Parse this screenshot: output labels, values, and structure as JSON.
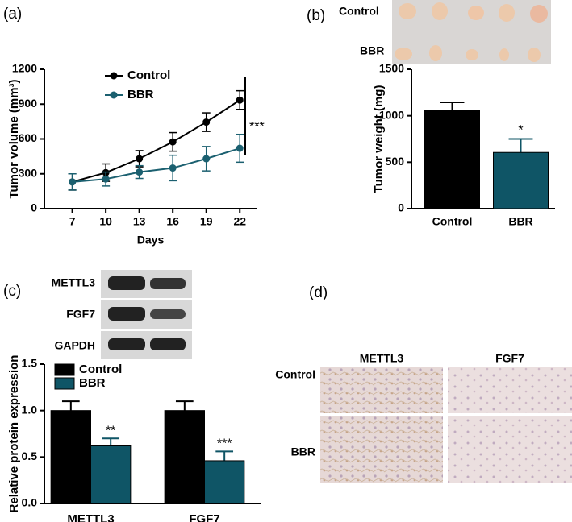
{
  "chart_data": [
    {
      "type": "line",
      "panel_label": "(a)",
      "x": [
        7,
        10,
        13,
        16,
        19,
        22
      ],
      "xticks": [
        7,
        10,
        13,
        16,
        19,
        22
      ],
      "xlim": [
        4.5,
        23.5
      ],
      "ylim": [
        0,
        1200
      ],
      "yticks": [
        0,
        300,
        600,
        900,
        1200
      ],
      "x_label": "Days",
      "y_label": "Tumor volume (mm³)",
      "series": [
        {
          "name": "Control",
          "color": "#000000",
          "values": [
            230,
            310,
            430,
            575,
            745,
            935
          ],
          "errors": [
            70,
            75,
            70,
            80,
            80,
            80
          ]
        },
        {
          "name": "BBR",
          "color": "#1b6070",
          "values": [
            230,
            255,
            315,
            350,
            430,
            520
          ],
          "errors": [
            70,
            60,
            55,
            110,
            105,
            120
          ]
        }
      ],
      "annotation": "***"
    },
    {
      "type": "bar",
      "panel_label": "(b)",
      "photo_labels": [
        "Control",
        "BBR"
      ],
      "categories": [
        "Control",
        "BBR"
      ],
      "values": [
        1060,
        605
      ],
      "errors": [
        85,
        145
      ],
      "colors": [
        "#000000",
        "#0f5566"
      ],
      "ylim": [
        0,
        1500
      ],
      "yticks": [
        0,
        500,
        1000,
        1500
      ],
      "y_label": "Tumor weight (mg)",
      "annotation": "*"
    },
    {
      "type": "bar",
      "panel_label": "(c)",
      "blot_labels": [
        "METTL3",
        "FGF7",
        "GAPDH"
      ],
      "categories": [
        "METTL3",
        "FGF7"
      ],
      "series": [
        {
          "name": "Control",
          "color": "#000000",
          "values": [
            1.0,
            1.0
          ],
          "errors": [
            0.1,
            0.1
          ]
        },
        {
          "name": "BBR",
          "color": "#0f5566",
          "values": [
            0.62,
            0.46
          ],
          "errors": [
            0.08,
            0.1
          ],
          "annotations": [
            "**",
            "***"
          ]
        }
      ],
      "ylim": [
        0,
        1.5
      ],
      "yticks": [
        {
          "value": 0,
          "label": "0.0"
        },
        {
          "value": 0.5,
          "label": "0.5"
        },
        {
          "value": 1.0,
          "label": "1.0"
        },
        {
          "value": 1.5,
          "label": "1.5"
        }
      ],
      "y_label": "Relative protein expression"
    }
  ],
  "ihc": {
    "panel_label": "(d)",
    "columns": [
      "METTL3",
      "FGF7"
    ],
    "rows": [
      "Control",
      "BBR"
    ]
  }
}
